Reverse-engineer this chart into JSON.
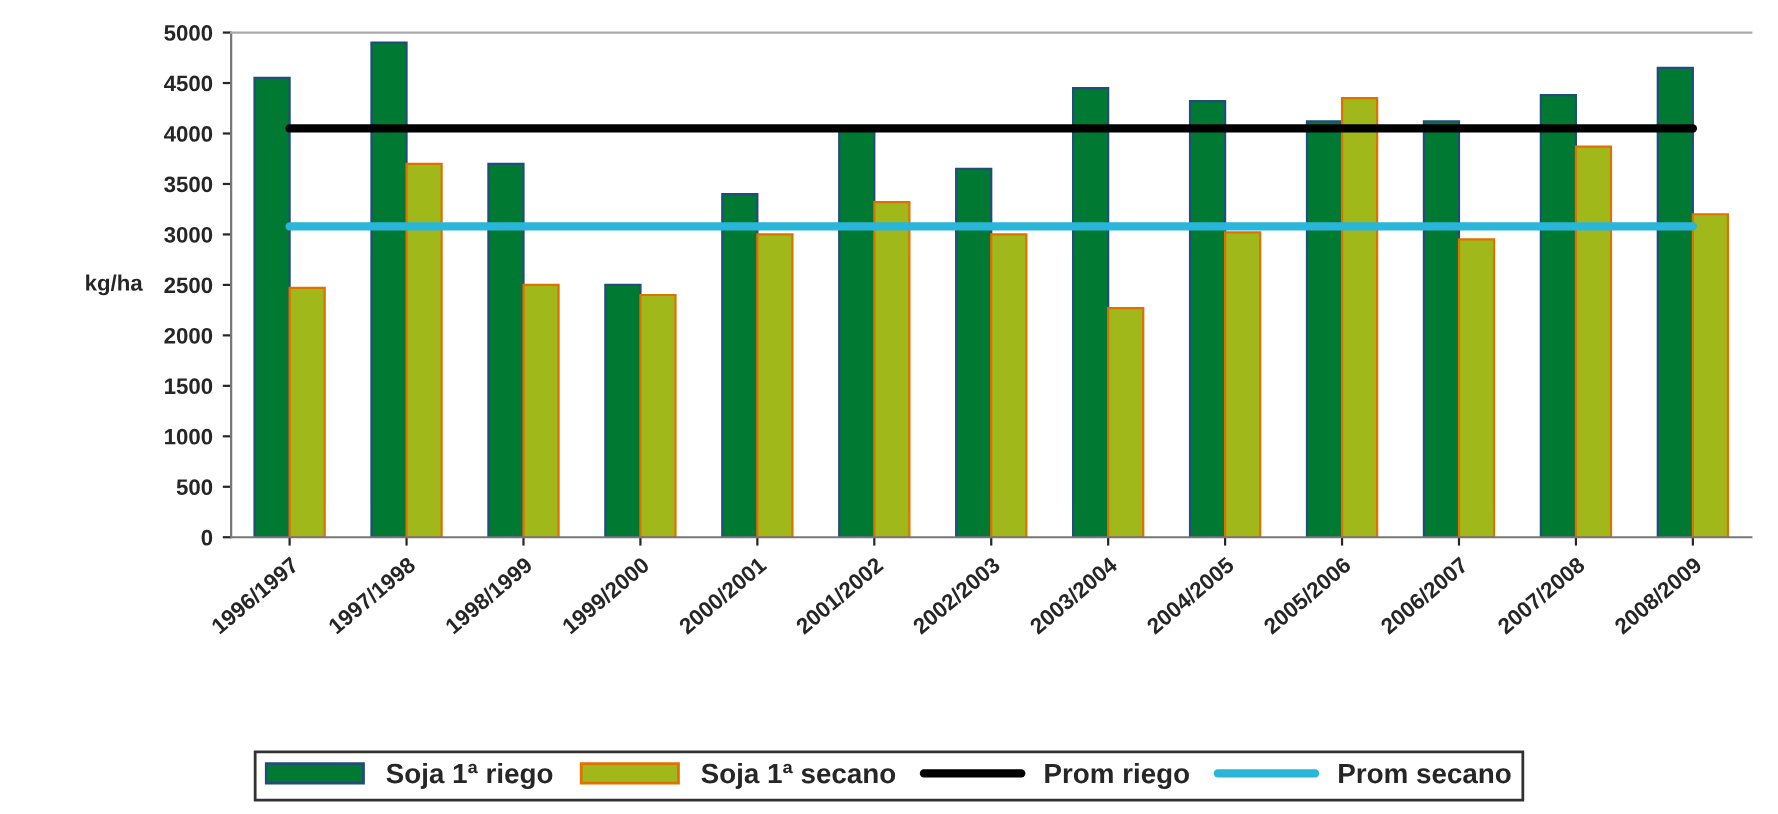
{
  "chart_data": {
    "type": "bar",
    "ylabel": "kg/ha",
    "categories": [
      "1996/1997",
      "1997/1998",
      "1998/1999",
      "1999/2000",
      "2000/2001",
      "2001/2002",
      "2002/2003",
      "2003/2004",
      "2004/2005",
      "2005/2006",
      "2006/2007",
      "2007/2008",
      "2008/2009"
    ],
    "series": [
      {
        "name": "Soja 1ª riego",
        "color": "#007a33",
        "values": [
          4550,
          4900,
          3700,
          2500,
          3400,
          4050,
          3650,
          4450,
          4320,
          4120,
          4120,
          4380,
          4650
        ]
      },
      {
        "name": "Soja 1ª secano",
        "color": "#a0b81a",
        "values": [
          2470,
          3700,
          2500,
          2400,
          3000,
          3320,
          3000,
          2270,
          3020,
          4350,
          2950,
          3870,
          3200
        ]
      },
      {
        "name": "Prom riego",
        "type": "line",
        "color": "#000000",
        "values": [
          4050,
          4050,
          4050,
          4050,
          4050,
          4050,
          4050,
          4050,
          4050,
          4050,
          4050,
          4050,
          4050
        ]
      },
      {
        "name": "Prom secano",
        "type": "line",
        "color": "#29b6d8",
        "values": [
          3080,
          3080,
          3080,
          3080,
          3080,
          3080,
          3080,
          3080,
          3080,
          3080,
          3080,
          3080,
          3080
        ]
      }
    ],
    "ylim": [
      0,
      5000
    ],
    "yticks": [
      0,
      500,
      1000,
      1500,
      2000,
      2500,
      3000,
      3500,
      4000,
      4500,
      5000
    ],
    "grid": false,
    "legend": "bottom"
  }
}
